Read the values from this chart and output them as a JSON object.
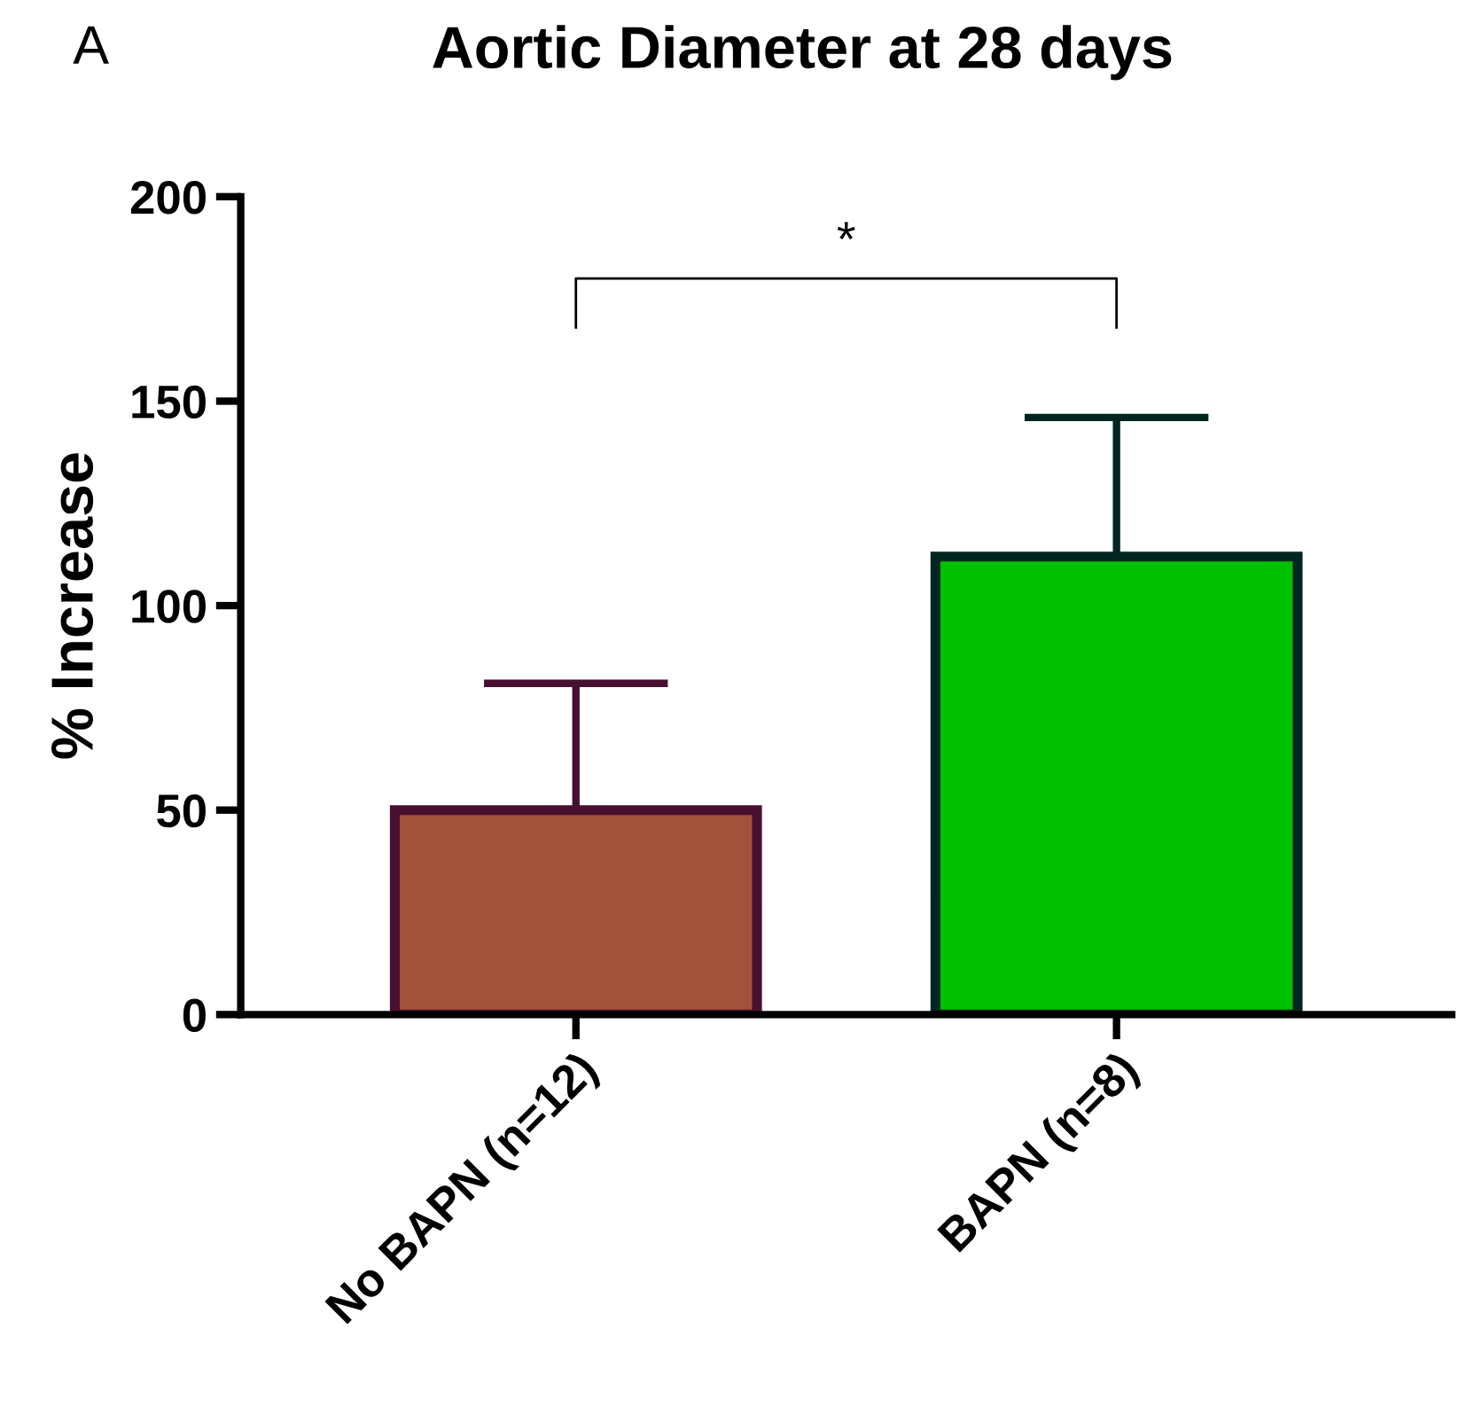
{
  "chart_data": {
    "type": "bar",
    "title": "Aortic Diameter at 28 days",
    "ylabel": "% Increase",
    "categories": [
      "No BAPN (n=12)",
      "BAPN (n=8)"
    ],
    "values": [
      50,
      112
    ],
    "errors": [
      [
        50,
        81
      ],
      [
        112,
        146
      ]
    ],
    "colors": [
      "#a0523a",
      "#00c000"
    ],
    "ylim": [
      0,
      200
    ],
    "yticks": [
      0,
      50,
      100,
      150,
      200
    ],
    "grid": false,
    "annotations": [
      "A",
      "*"
    ]
  }
}
